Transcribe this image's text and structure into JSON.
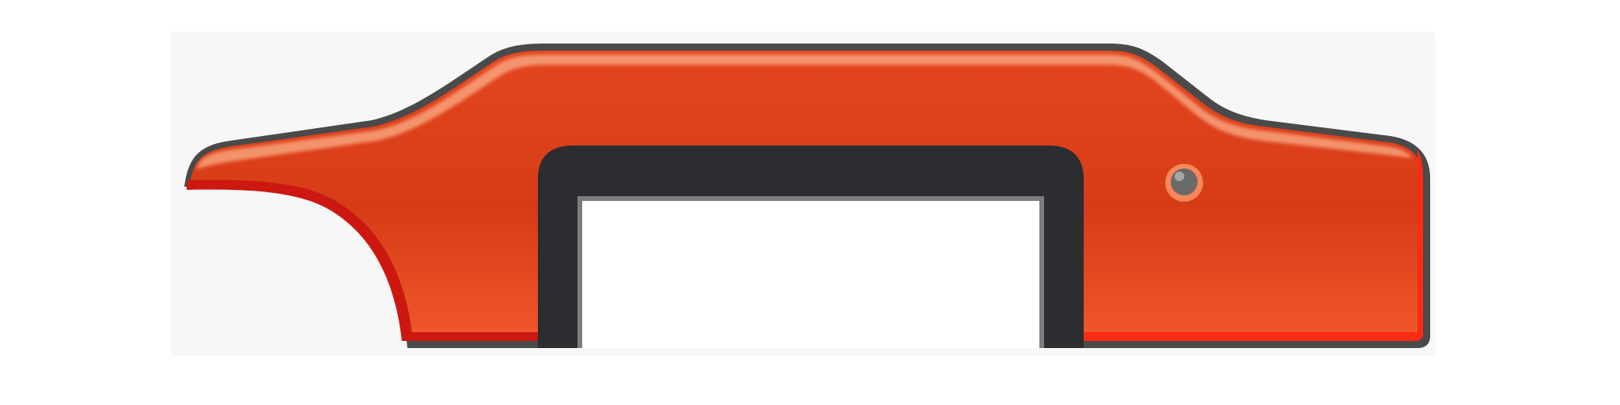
{
  "colors": {
    "background": "#ffffff",
    "backdrop": "#f7f7f7",
    "body_fill": "#e3461f",
    "body_fill_dark": "#d63c16",
    "body_fill_light": "#f0582b",
    "highlight": "#f8a27c",
    "edge_red": "#cc1810",
    "edge_bright_red": "#ff2a14",
    "outline": "#4a4a4a",
    "slot": "#2b2d30",
    "rivet": "#6a6a6a"
  },
  "icons": {
    "shape": "orange-c-clamp-hook-icon",
    "slot": "notch-icon",
    "rivet": "rivet-icon"
  }
}
